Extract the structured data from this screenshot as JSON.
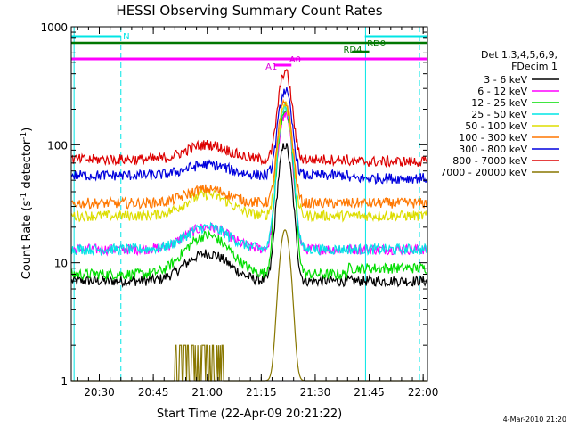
{
  "chart_data": {
    "type": "line",
    "title": "HESSI Observing Summary Count Rates",
    "xlabel": "Start Time (22-Apr-09 20:21:22)",
    "ylabel_main": "Count Rate (s",
    "ylabel_sup1": "-1",
    "ylabel_mid": " detector",
    "ylabel_sup2": "-1",
    "ylabel_end": ")",
    "yscale": "log",
    "ylim": [
      1,
      1000
    ],
    "xlim_minutes": [
      20.37,
      22.02
    ],
    "xticks": [
      {
        "t": 20.5,
        "label": "20:30"
      },
      {
        "t": 20.75,
        "label": "20:45"
      },
      {
        "t": 21.0,
        "label": "21:00"
      },
      {
        "t": 21.25,
        "label": "21:15"
      },
      {
        "t": 21.5,
        "label": "21:30"
      },
      {
        "t": 21.75,
        "label": "21:45"
      },
      {
        "t": 22.0,
        "label": "22:00"
      }
    ],
    "yticks": [
      {
        "v": 1,
        "label": "1"
      },
      {
        "v": 10,
        "label": "10"
      },
      {
        "v": 100,
        "label": "100"
      },
      {
        "v": 1000,
        "label": "1000"
      }
    ],
    "legend_header": [
      "Det 1,3,4,5,6,9,",
      "FDecim 1"
    ],
    "series": [
      {
        "name": "3 - 6 keV",
        "color": "#000000",
        "base": 7,
        "bump": 12,
        "peak": 100,
        "after": 7
      },
      {
        "name": "6 - 12 keV",
        "color": "#ff00ff",
        "base": 13,
        "bump": 20,
        "peak": 180,
        "after": 13
      },
      {
        "name": "12 - 25 keV",
        "color": "#00dd00",
        "base": 8,
        "bump": 17,
        "peak": 200,
        "after": 9
      },
      {
        "name": "25 - 50 keV",
        "color": "#00e5e5",
        "base": 13,
        "bump": 20,
        "peak": 210,
        "after": 13
      },
      {
        "name": "50 - 100 keV",
        "color": "#dddd00",
        "base": 25,
        "bump": 38,
        "peak": 220,
        "after": 25
      },
      {
        "name": "100 - 300 keV",
        "color": "#ff7700",
        "base": 32,
        "bump": 42,
        "peak": 230,
        "after": 32
      },
      {
        "name": "300 - 800 keV",
        "color": "#0000dd",
        "base": 55,
        "bump": 68,
        "peak": 290,
        "after": 52
      },
      {
        "name": "800 - 7000 keV",
        "color": "#dd0000",
        "base": 75,
        "bump": 100,
        "peak": 420,
        "after": 72
      },
      {
        "name": "7000 - 20000 keV",
        "color": "#887700",
        "base": 1,
        "bump": 1,
        "peak": 19,
        "after": 1
      }
    ],
    "annotations": [
      {
        "text": "N",
        "color": "#00e5e5"
      },
      {
        "text": "RD0",
        "color": "#007700"
      },
      {
        "text": "RD4",
        "color": "#007700"
      },
      {
        "text": "A0",
        "color": "#dd00dd"
      },
      {
        "text": "A1",
        "color": "#dd00dd"
      }
    ],
    "footer": "4-Mar-2010 21:20"
  }
}
